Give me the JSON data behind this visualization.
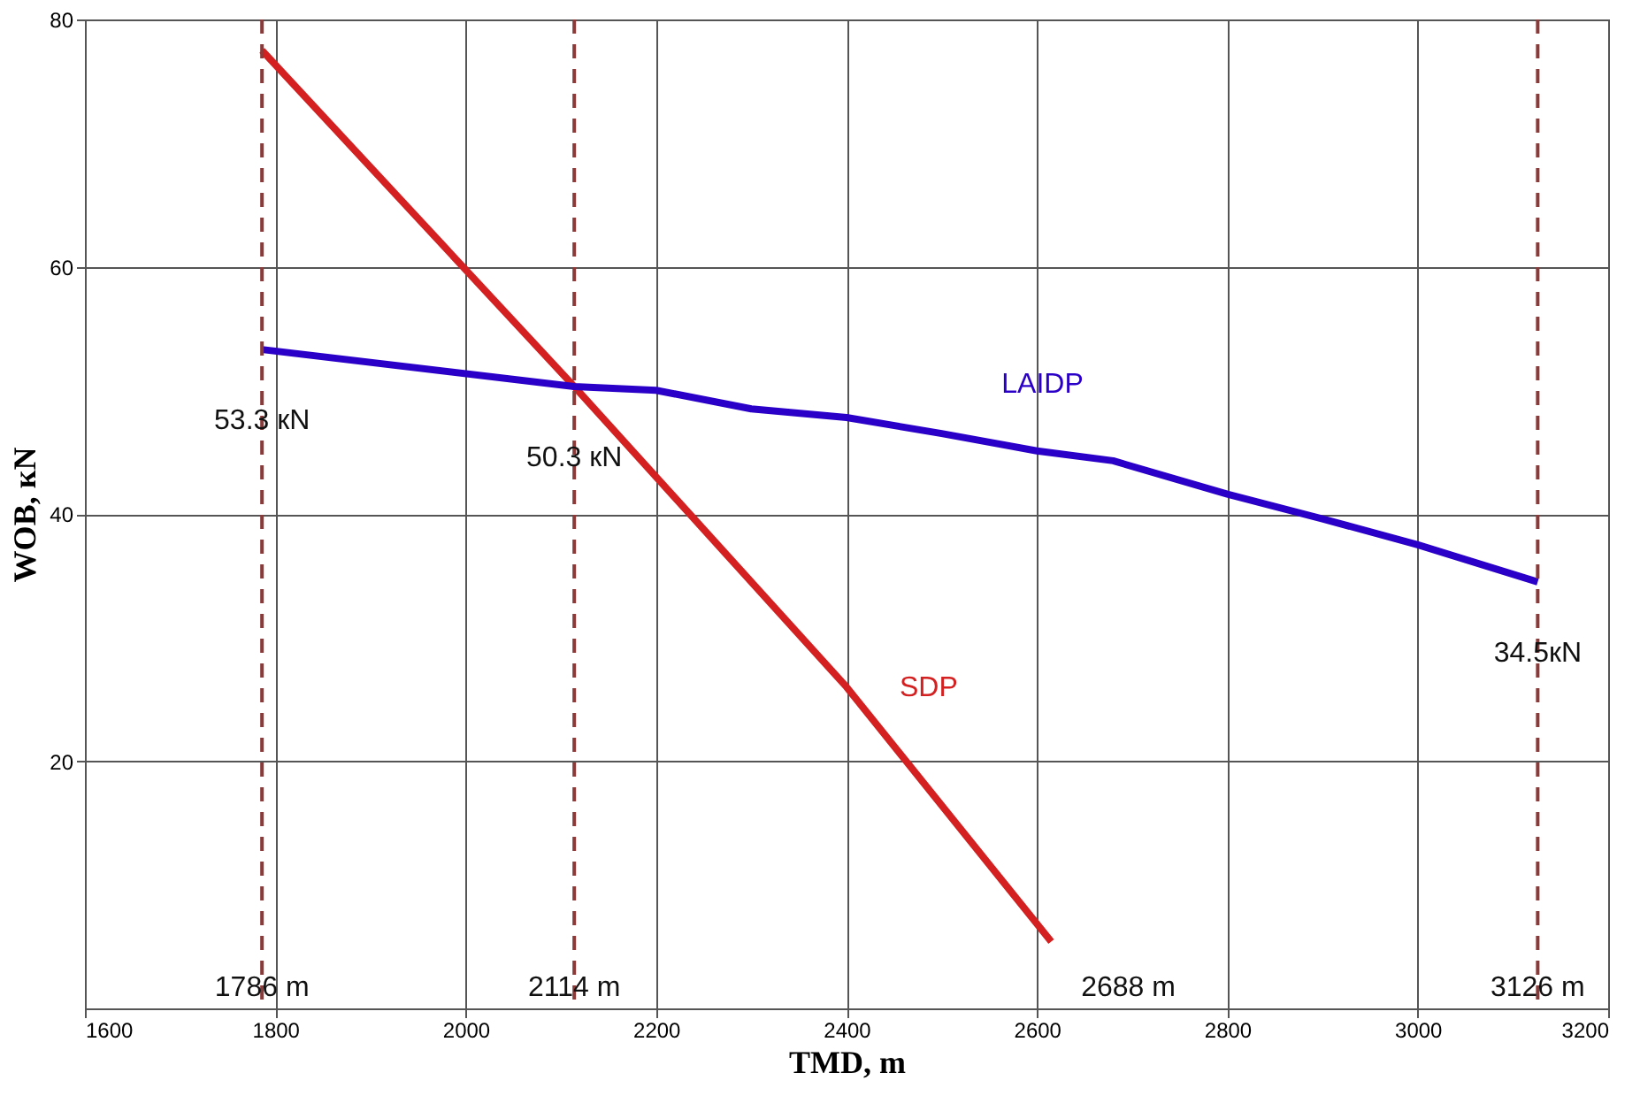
{
  "chart_data": {
    "type": "line",
    "xlabel": "TMD, m",
    "ylabel": "WOB, кN",
    "xlim": [
      1600,
      3200
    ],
    "xticks": [
      1600,
      1800,
      2000,
      2200,
      2400,
      2600,
      2800,
      3000,
      3200
    ],
    "ylim": [
      0,
      80
    ],
    "yticks": [
      20,
      40,
      60,
      80
    ],
    "grid": true,
    "legend": false,
    "marker": "none",
    "line_style": "solid",
    "series": [
      {
        "name": "SDP",
        "color": "#d42020",
        "x": [
          1786,
          2114,
          2400,
          2615
        ],
        "values": [
          77.5,
          50.3,
          26.0,
          5.4
        ]
      },
      {
        "name": "LAIDP",
        "color": "#2a00c8",
        "x": [
          1786,
          2114,
          2200,
          2300,
          2400,
          2500,
          2600,
          2680,
          2800,
          2900,
          3000,
          3126
        ],
        "values": [
          53.3,
          50.3,
          50.0,
          48.5,
          47.8,
          46.5,
          45.1,
          44.3,
          41.6,
          39.6,
          37.5,
          34.5
        ]
      }
    ],
    "ref_lines": [
      {
        "axis": "x",
        "value": 1786,
        "label": "1786 m",
        "color": "#8b3a3a",
        "line_style": "dashed"
      },
      {
        "axis": "x",
        "value": 2114,
        "label": "2114 m",
        "color": "#8b3a3a",
        "line_style": "dashed"
      },
      {
        "axis": "x",
        "value": 3126,
        "label": "3126 m",
        "color": "#8b3a3a",
        "line_style": "dashed"
      }
    ],
    "annotations": [
      {
        "text": "53.3 кN",
        "x": 1786,
        "y": 53.3
      },
      {
        "text": "50.3 кN",
        "x": 2114,
        "y": 50.3
      },
      {
        "text": "34.5кN",
        "x": 3126,
        "y": 34.5
      },
      "2688 m"
    ]
  }
}
